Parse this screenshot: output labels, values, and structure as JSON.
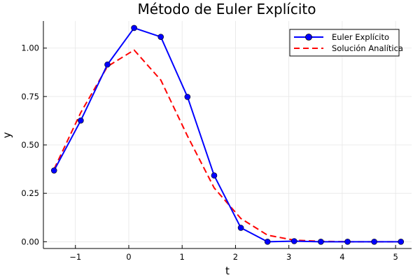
{
  "chart_data": {
    "type": "line",
    "title": "Método de Euler Explícito",
    "xlabel": "t",
    "ylabel": "y",
    "xlim": [
      -1.6,
      5.3
    ],
    "ylim": [
      -0.035,
      1.14
    ],
    "xticks": [
      -1,
      0,
      1,
      2,
      3,
      4,
      5
    ],
    "xtick_labels": [
      "−1",
      "0",
      "1",
      "2",
      "3",
      "4",
      "5"
    ],
    "yticks": [
      0.0,
      0.25,
      0.5,
      0.75,
      1.0
    ],
    "ytick_labels": [
      "0.00",
      "0.25",
      "0.50",
      "0.75",
      "1.00"
    ],
    "grid": true,
    "legend_position": "top-right",
    "series": [
      {
        "name": "Euler Explícito",
        "color": "#0000ff",
        "style": "solid",
        "marker": "circle",
        "x": [
          -1.4,
          -0.9,
          -0.4,
          0.1,
          0.6,
          1.1,
          1.6,
          2.1,
          2.6,
          3.1,
          3.6,
          4.1,
          4.6,
          5.1
        ],
        "y": [
          0.368,
          0.626,
          0.915,
          1.104,
          1.058,
          0.748,
          0.342,
          0.072,
          0.0,
          0.003,
          0.0,
          0.0,
          0.0,
          0.0
        ]
      },
      {
        "name": "Solución Analítica",
        "color": "#ff0000",
        "style": "dashed",
        "marker": "none",
        "x": [
          -1.4,
          -0.9,
          -0.4,
          0.1,
          0.6,
          1.1,
          1.6,
          2.1,
          2.6,
          3.1,
          3.6,
          4.1,
          4.6,
          5.1
        ],
        "y": [
          0.375,
          0.667,
          0.905,
          0.99,
          0.835,
          0.546,
          0.278,
          0.12,
          0.034,
          0.008,
          0.002,
          0.0,
          0.0,
          0.0
        ]
      }
    ]
  }
}
